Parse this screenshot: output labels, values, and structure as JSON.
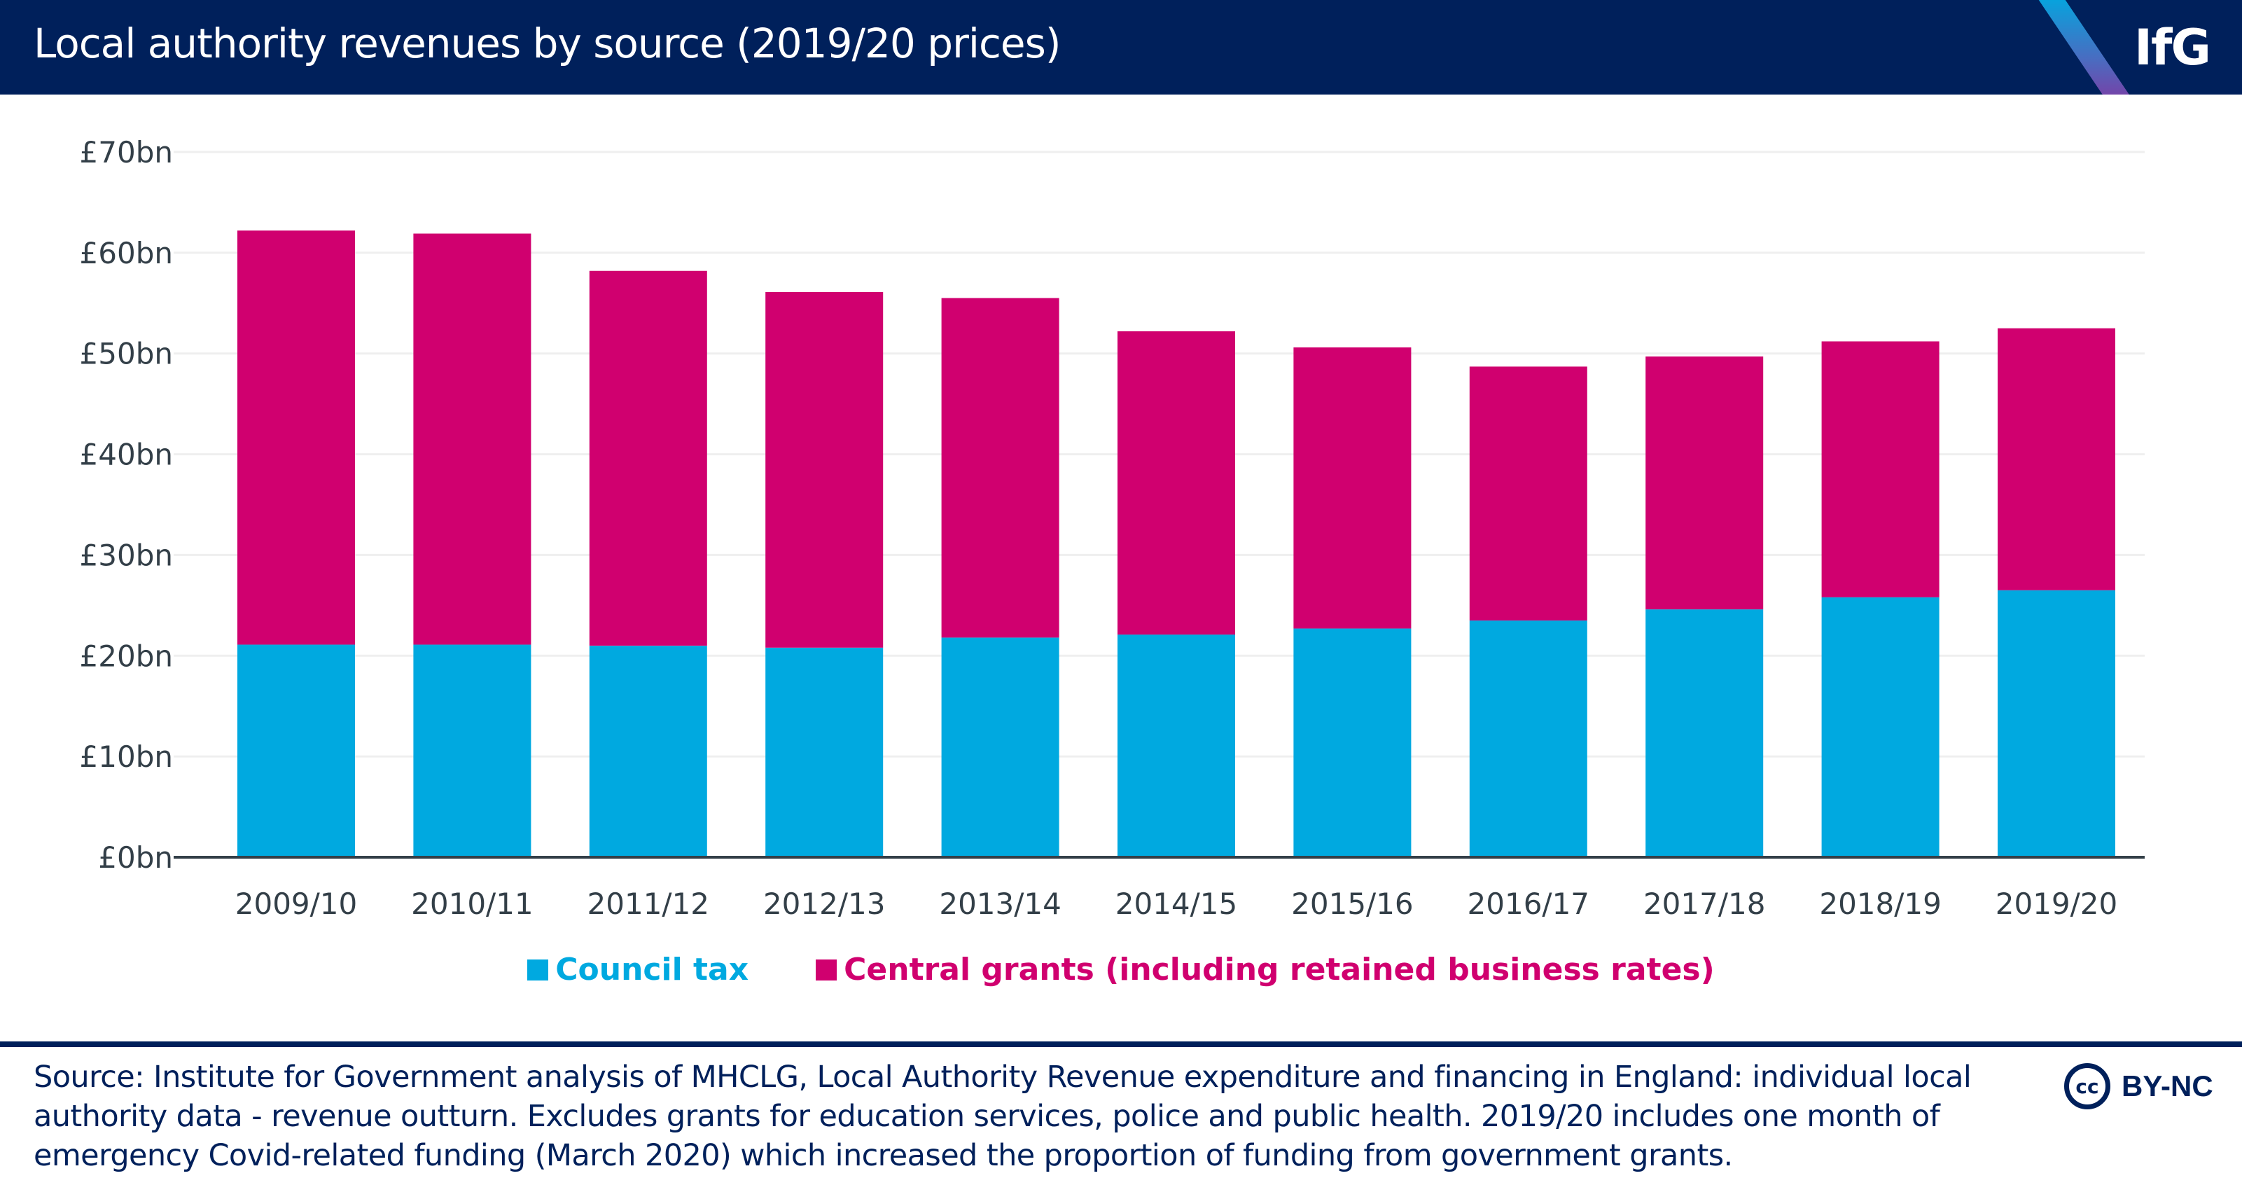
{
  "header": {
    "title": "Local authority revenues by source (2019/20 prices)",
    "logo_text": "IfG",
    "background_color": "#00205b"
  },
  "chart_data": {
    "type": "bar",
    "stacked": true,
    "title": "Local authority revenues by source (2019/20 prices)",
    "xlabel": "",
    "ylabel": "",
    "categories": [
      "2009/10",
      "2010/11",
      "2011/12",
      "2012/13",
      "2013/14",
      "2014/15",
      "2015/16",
      "2016/17",
      "2017/18",
      "2018/19",
      "2019/20"
    ],
    "series": [
      {
        "name": "Council tax",
        "color": "#00a9e0",
        "values": [
          21.1,
          21.1,
          21.0,
          20.8,
          21.8,
          22.1,
          22.7,
          23.5,
          24.6,
          25.8,
          26.5
        ]
      },
      {
        "name": "Central grants (including retained business rates)",
        "color": "#d0006f",
        "values": [
          41.1,
          40.8,
          37.2,
          35.3,
          33.7,
          30.1,
          27.9,
          25.2,
          25.1,
          25.4,
          26.0
        ]
      }
    ],
    "totals": [
      62.2,
      61.9,
      58.2,
      56.1,
      55.5,
      52.2,
      50.6,
      48.7,
      49.7,
      51.2,
      52.5
    ],
    "ylim": [
      0,
      70
    ],
    "yticks": [
      0,
      10,
      20,
      30,
      40,
      50,
      60,
      70
    ],
    "ytick_labels": [
      "£0bn",
      "£10bn",
      "£20bn",
      "£30bn",
      "£40bn",
      "£50bn",
      "£60bn",
      "£70bn"
    ],
    "grid": true,
    "legend_position": "bottom"
  },
  "legend": {
    "items": [
      {
        "label": "Council tax",
        "color": "#00a9e0"
      },
      {
        "label": "Central grants (including retained business rates)",
        "color": "#d0006f"
      }
    ]
  },
  "footer": {
    "source_text": "Source: Institute for Government analysis of MHCLG, Local Authority Revenue expenditure and financing in England: individual local authority data - revenue outturn. Excludes grants for education services, police and public health. 2019/20 includes one month of emergency Covid-related funding (March 2020) which increased the proportion of funding from government grants.",
    "license_icon_text": "cc",
    "license_text": "BY-NC"
  }
}
